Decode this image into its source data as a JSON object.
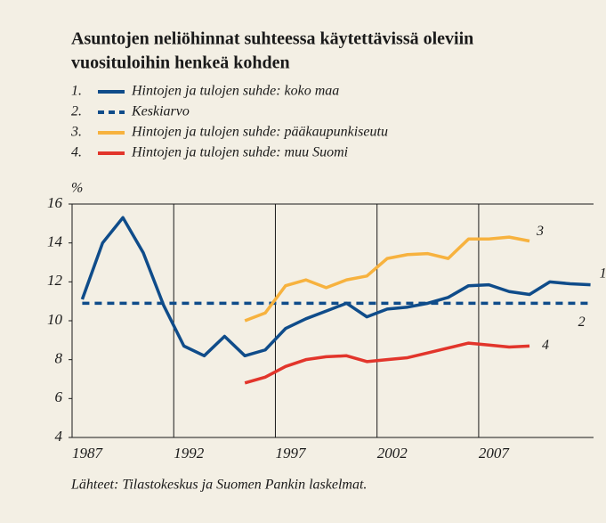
{
  "chart_data": {
    "type": "line",
    "title_lines": [
      "Asuntojen neliöhinnat suhteessa käytettävissä oleviin",
      "vuosituloihin henkeä kohden"
    ],
    "y_label": "%",
    "source": "Lähteet: Tilastokeskus ja Suomen Pankin laskelmat.",
    "x": [
      1987,
      1988,
      1989,
      1990,
      1991,
      1992,
      1993,
      1994,
      1995,
      1996,
      1997,
      1998,
      1999,
      2000,
      2001,
      2002,
      2003,
      2004,
      2005,
      2006,
      2007,
      2008,
      2009,
      2010,
      2011,
      2012
    ],
    "xlim": [
      1986.5,
      2012.15
    ],
    "xticks": [
      1987,
      1992,
      1997,
      2002,
      2007
    ],
    "ylim": [
      4,
      16
    ],
    "yticks": [
      4,
      6,
      8,
      10,
      12,
      14,
      16
    ],
    "series": [
      {
        "key": "1.",
        "end_label": "1",
        "name": "Hintojen ja tulojen suhde: koko maa",
        "color": "#0f4c8a",
        "dashed": false,
        "values": [
          11.1,
          14.0,
          15.3,
          13.5,
          10.8,
          8.7,
          8.2,
          9.2,
          8.2,
          8.5,
          9.6,
          10.1,
          10.5,
          10.9,
          10.2,
          10.6,
          10.7,
          10.9,
          11.2,
          11.8,
          11.85,
          11.5,
          11.35,
          12.0,
          11.9,
          11.85
        ]
      },
      {
        "key": "2.",
        "end_label": "2",
        "name": "Keskiarvo",
        "color": "#0f4c8a",
        "dashed": true,
        "values": [
          10.9,
          10.9,
          10.9,
          10.9,
          10.9,
          10.9,
          10.9,
          10.9,
          10.9,
          10.9,
          10.9,
          10.9,
          10.9,
          10.9,
          10.9,
          10.9,
          10.9,
          10.9,
          10.9,
          10.9,
          10.9,
          10.9,
          10.9,
          10.9,
          10.9,
          10.9
        ]
      },
      {
        "key": "3.",
        "end_label": "3",
        "name": "Hintojen ja tulojen suhde: pääkaupunkiseutu",
        "color": "#f7b23e",
        "dashed": false,
        "values": [
          null,
          null,
          null,
          null,
          null,
          null,
          null,
          null,
          10.0,
          10.4,
          11.8,
          12.1,
          11.7,
          12.1,
          12.3,
          13.2,
          13.4,
          13.45,
          13.2,
          14.2,
          14.2,
          14.3,
          14.1,
          null,
          null,
          null
        ]
      },
      {
        "key": "4.",
        "end_label": "4",
        "name": "Hintojen ja tulojen suhde: muu Suomi",
        "color": "#e2352b",
        "dashed": false,
        "values": [
          null,
          null,
          null,
          null,
          null,
          null,
          null,
          null,
          6.8,
          7.1,
          7.65,
          8.0,
          8.15,
          8.2,
          7.9,
          8.0,
          8.1,
          8.35,
          8.6,
          8.85,
          8.75,
          8.65,
          8.7,
          null,
          null,
          null
        ]
      }
    ]
  }
}
